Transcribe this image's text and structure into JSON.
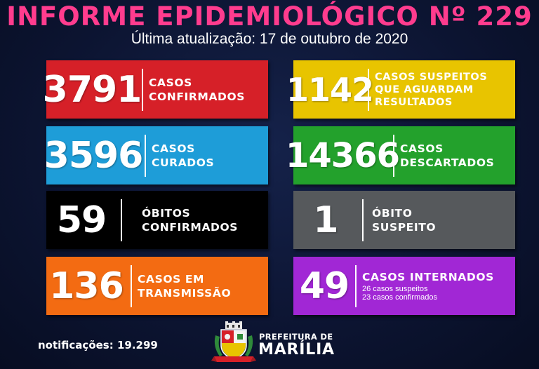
{
  "header": {
    "title": "INFORME EPIDEMIOLÓGICO Nº 229",
    "subtitle": "Última atualização: 17 de outubro de 2020"
  },
  "colors": {
    "title": "#ff3c8e",
    "confirmed": "#d62028",
    "cured": "#1e9dd8",
    "deaths": "#000000",
    "transmission": "#f36b12",
    "suspected": "#e8c400",
    "discarded": "#23a12c",
    "suspected_death": "#56595c",
    "hospitalized": "#a127d5"
  },
  "cards": {
    "confirmed": {
      "value": "3791",
      "line1": "CASOS",
      "line2": "CONFIRMADOS"
    },
    "cured": {
      "value": "3596",
      "line1": "CASOS",
      "line2": "CURADOS"
    },
    "deaths": {
      "value": "59",
      "line1": "ÓBITOS",
      "line2": "CONFIRMADOS"
    },
    "transmission": {
      "value": "136",
      "line1": "CASOS EM",
      "line2": "TRANSMISSÃO"
    },
    "suspected": {
      "value": "1142",
      "line1": "CASOS SUSPEITOS",
      "line2": "QUE AGUARDAM",
      "line3": "RESULTADOS"
    },
    "discarded": {
      "value": "14366",
      "line1": "CASOS",
      "line2": "DESCARTADOS"
    },
    "suspected_death": {
      "value": "1",
      "line1": "ÓBITO",
      "line2": "SUSPEITO"
    },
    "hospitalized": {
      "value": "49",
      "line1": "CASOS INTERNADOS",
      "detail1": "26 casos suspeitos",
      "detail2": "23 casos confirmados"
    }
  },
  "footer": {
    "notifications": "notificações: 19.299",
    "prefeitura_small": "PREFEITURA DE",
    "prefeitura_big": "MARÍLIA"
  },
  "icons": {
    "logo": "municipal-coat-of-arms"
  }
}
